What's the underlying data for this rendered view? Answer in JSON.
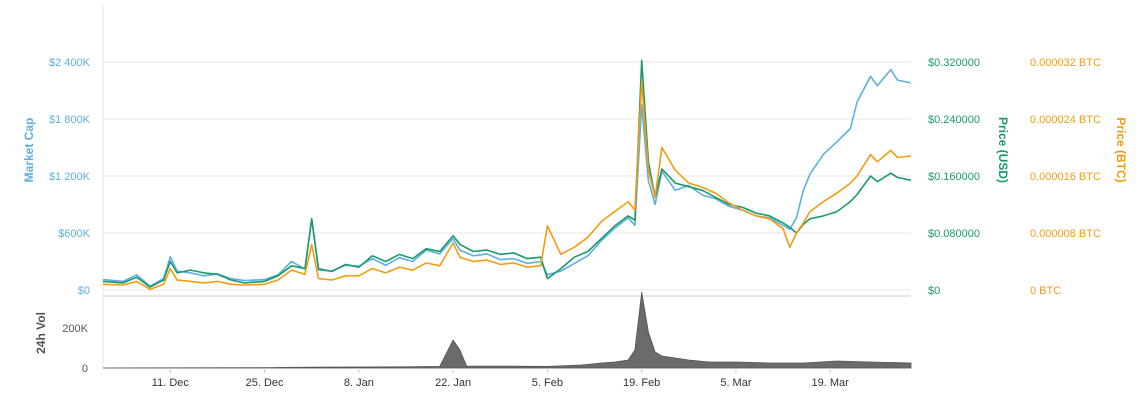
{
  "chart_data": {
    "type": "line",
    "x_tick_labels": [
      "11. Dec",
      "25. Dec",
      "8. Jan",
      "22. Jan",
      "5. Feb",
      "19. Feb",
      "5. Mar",
      "19. Mar"
    ],
    "x_tick_dates": [
      "2017-12-11",
      "2017-12-25",
      "2018-01-08",
      "2018-01-22",
      "2018-02-05",
      "2018-02-19",
      "2018-03-05",
      "2018-03-19"
    ],
    "xlim_dates": [
      "2017-12-01",
      "2018-03-31"
    ],
    "axes": {
      "market_cap": {
        "title": "Market Cap",
        "tick_labels": [
          "$0",
          "$600K",
          "$1 200K",
          "$1 800K",
          "$2 400K"
        ],
        "tick_values": [
          0,
          600000,
          1200000,
          1800000,
          2400000
        ],
        "ylim": [
          0,
          2400000
        ],
        "color": "#5fafde"
      },
      "price_usd": {
        "title": "Price (USD)",
        "tick_labels": [
          "$0",
          "$0.080000",
          "$0.160000",
          "$0.240000",
          "$0.320000"
        ],
        "tick_values": [
          0,
          0.08,
          0.16,
          0.24,
          0.32
        ],
        "ylim": [
          0,
          0.32
        ],
        "color": "#1a9a6c"
      },
      "price_btc": {
        "title": "Price (BTC)",
        "tick_labels": [
          "0 BTC",
          "0.000008 BTC",
          "0.000016 BTC",
          "0.000024 BTC",
          "0.000032 BTC"
        ],
        "tick_values": [
          0,
          8e-06,
          1.6e-05,
          2.4e-05,
          3.2e-05
        ],
        "ylim": [
          0,
          3.2e-05
        ],
        "color": "#f39c12"
      },
      "volume": {
        "title": "24h Vol",
        "tick_labels": [
          "0",
          "200K"
        ],
        "tick_values": [
          0,
          200000
        ],
        "ylim": [
          0,
          350000
        ],
        "color": "#555555"
      }
    },
    "grid": true,
    "series": [
      {
        "key": "market_cap",
        "axis": "market_cap",
        "points": [
          [
            "2017-12-01",
            110000
          ],
          [
            "2017-12-04",
            90000
          ],
          [
            "2017-12-06",
            160000
          ],
          [
            "2017-12-08",
            40000
          ],
          [
            "2017-12-10",
            120000
          ],
          [
            "2017-12-11",
            350000
          ],
          [
            "2017-12-12",
            200000
          ],
          [
            "2017-12-14",
            180000
          ],
          [
            "2017-12-16",
            150000
          ],
          [
            "2017-12-18",
            170000
          ],
          [
            "2017-12-20",
            120000
          ],
          [
            "2017-12-22",
            100000
          ],
          [
            "2017-12-25",
            110000
          ],
          [
            "2017-12-27",
            160000
          ],
          [
            "2017-12-29",
            300000
          ],
          [
            "2017-12-31",
            220000
          ],
          [
            "2018-01-01",
            750000
          ],
          [
            "2018-01-02",
            210000
          ],
          [
            "2018-01-04",
            200000
          ],
          [
            "2018-01-06",
            260000
          ],
          [
            "2018-01-08",
            250000
          ],
          [
            "2018-01-10",
            330000
          ],
          [
            "2018-01-12",
            260000
          ],
          [
            "2018-01-14",
            340000
          ],
          [
            "2018-01-16",
            300000
          ],
          [
            "2018-01-18",
            420000
          ],
          [
            "2018-01-20",
            380000
          ],
          [
            "2018-01-22",
            540000
          ],
          [
            "2018-01-23",
            420000
          ],
          [
            "2018-01-25",
            360000
          ],
          [
            "2018-01-27",
            380000
          ],
          [
            "2018-01-29",
            320000
          ],
          [
            "2018-01-31",
            330000
          ],
          [
            "2018-02-02",
            280000
          ],
          [
            "2018-02-04",
            300000
          ],
          [
            "2018-02-05",
            160000
          ],
          [
            "2018-02-07",
            200000
          ],
          [
            "2018-02-09",
            280000
          ],
          [
            "2018-02-11",
            360000
          ],
          [
            "2018-02-13",
            520000
          ],
          [
            "2018-02-15",
            650000
          ],
          [
            "2018-02-17",
            760000
          ],
          [
            "2018-02-18",
            680000
          ],
          [
            "2018-02-19",
            1950000
          ],
          [
            "2018-02-20",
            1150000
          ],
          [
            "2018-02-21",
            900000
          ],
          [
            "2018-02-22",
            1250000
          ],
          [
            "2018-02-24",
            1050000
          ],
          [
            "2018-02-26",
            1100000
          ],
          [
            "2018-02-28",
            1000000
          ],
          [
            "2018-03-02",
            960000
          ],
          [
            "2018-03-04",
            880000
          ],
          [
            "2018-03-06",
            840000
          ],
          [
            "2018-03-08",
            780000
          ],
          [
            "2018-03-10",
            760000
          ],
          [
            "2018-03-12",
            680000
          ],
          [
            "2018-03-13",
            640000
          ],
          [
            "2018-03-14",
            760000
          ],
          [
            "2018-03-15",
            1050000
          ],
          [
            "2018-03-16",
            1220000
          ],
          [
            "2018-03-18",
            1430000
          ],
          [
            "2018-03-20",
            1560000
          ],
          [
            "2018-03-22",
            1700000
          ],
          [
            "2018-03-23",
            1980000
          ],
          [
            "2018-03-25",
            2250000
          ],
          [
            "2018-03-26",
            2150000
          ],
          [
            "2018-03-28",
            2320000
          ],
          [
            "2018-03-29",
            2210000
          ],
          [
            "2018-03-31",
            2180000
          ]
        ]
      },
      {
        "key": "price_usd",
        "axis": "price_usd",
        "points": [
          [
            "2017-12-01",
            0.012
          ],
          [
            "2017-12-04",
            0.01
          ],
          [
            "2017-12-06",
            0.018
          ],
          [
            "2017-12-08",
            0.004
          ],
          [
            "2017-12-10",
            0.014
          ],
          [
            "2017-12-11",
            0.04
          ],
          [
            "2017-12-12",
            0.024
          ],
          [
            "2017-12-14",
            0.028
          ],
          [
            "2017-12-16",
            0.024
          ],
          [
            "2017-12-18",
            0.022
          ],
          [
            "2017-12-20",
            0.014
          ],
          [
            "2017-12-22",
            0.01
          ],
          [
            "2017-12-25",
            0.012
          ],
          [
            "2017-12-27",
            0.02
          ],
          [
            "2017-12-29",
            0.034
          ],
          [
            "2017-12-31",
            0.03
          ],
          [
            "2018-01-01",
            0.1
          ],
          [
            "2018-01-02",
            0.03
          ],
          [
            "2018-01-04",
            0.026
          ],
          [
            "2018-01-06",
            0.036
          ],
          [
            "2018-01-08",
            0.032
          ],
          [
            "2018-01-10",
            0.048
          ],
          [
            "2018-01-12",
            0.04
          ],
          [
            "2018-01-14",
            0.05
          ],
          [
            "2018-01-16",
            0.044
          ],
          [
            "2018-01-18",
            0.058
          ],
          [
            "2018-01-20",
            0.054
          ],
          [
            "2018-01-22",
            0.076
          ],
          [
            "2018-01-23",
            0.064
          ],
          [
            "2018-01-25",
            0.054
          ],
          [
            "2018-01-27",
            0.056
          ],
          [
            "2018-01-29",
            0.05
          ],
          [
            "2018-01-31",
            0.052
          ],
          [
            "2018-02-02",
            0.044
          ],
          [
            "2018-02-04",
            0.046
          ],
          [
            "2018-02-05",
            0.016
          ],
          [
            "2018-02-07",
            0.03
          ],
          [
            "2018-02-09",
            0.046
          ],
          [
            "2018-02-11",
            0.054
          ],
          [
            "2018-02-13",
            0.072
          ],
          [
            "2018-02-15",
            0.09
          ],
          [
            "2018-02-17",
            0.104
          ],
          [
            "2018-02-18",
            0.098
          ],
          [
            "2018-02-19",
            0.322
          ],
          [
            "2018-02-20",
            0.18
          ],
          [
            "2018-02-21",
            0.13
          ],
          [
            "2018-02-22",
            0.17
          ],
          [
            "2018-02-24",
            0.15
          ],
          [
            "2018-02-26",
            0.145
          ],
          [
            "2018-02-28",
            0.14
          ],
          [
            "2018-03-02",
            0.13
          ],
          [
            "2018-03-04",
            0.12
          ],
          [
            "2018-03-06",
            0.116
          ],
          [
            "2018-03-08",
            0.108
          ],
          [
            "2018-03-10",
            0.104
          ],
          [
            "2018-03-12",
            0.094
          ],
          [
            "2018-03-13",
            0.088
          ],
          [
            "2018-03-14",
            0.08
          ],
          [
            "2018-03-15",
            0.092
          ],
          [
            "2018-03-16",
            0.1
          ],
          [
            "2018-03-18",
            0.104
          ],
          [
            "2018-03-20",
            0.11
          ],
          [
            "2018-03-22",
            0.124
          ],
          [
            "2018-03-23",
            0.134
          ],
          [
            "2018-03-25",
            0.16
          ],
          [
            "2018-03-26",
            0.152
          ],
          [
            "2018-03-28",
            0.164
          ],
          [
            "2018-03-29",
            0.158
          ],
          [
            "2018-03-31",
            0.154
          ]
        ]
      },
      {
        "key": "price_btc",
        "axis": "price_btc",
        "points": [
          [
            "2017-12-01",
            8e-07
          ],
          [
            "2017-12-04",
            7e-07
          ],
          [
            "2017-12-06",
            1.2e-06
          ],
          [
            "2017-12-08",
            1e-07
          ],
          [
            "2017-12-10",
            8e-07
          ],
          [
            "2017-12-11",
            3e-06
          ],
          [
            "2017-12-12",
            1.4e-06
          ],
          [
            "2017-12-14",
            1.2e-06
          ],
          [
            "2017-12-16",
            1e-06
          ],
          [
            "2017-12-18",
            1.2e-06
          ],
          [
            "2017-12-20",
            8e-07
          ],
          [
            "2017-12-22",
            7e-07
          ],
          [
            "2017-12-25",
            8e-07
          ],
          [
            "2017-12-27",
            1.4e-06
          ],
          [
            "2017-12-29",
            2.8e-06
          ],
          [
            "2017-12-31",
            2.2e-06
          ],
          [
            "2018-01-01",
            6.4e-06
          ],
          [
            "2018-01-02",
            1.6e-06
          ],
          [
            "2018-01-04",
            1.4e-06
          ],
          [
            "2018-01-06",
            2e-06
          ],
          [
            "2018-01-08",
            2e-06
          ],
          [
            "2018-01-10",
            3e-06
          ],
          [
            "2018-01-12",
            2.4e-06
          ],
          [
            "2018-01-14",
            3.2e-06
          ],
          [
            "2018-01-16",
            2.8e-06
          ],
          [
            "2018-01-18",
            3.8e-06
          ],
          [
            "2018-01-20",
            3.4e-06
          ],
          [
            "2018-01-22",
            6.6e-06
          ],
          [
            "2018-01-23",
            4.6e-06
          ],
          [
            "2018-01-25",
            4e-06
          ],
          [
            "2018-01-27",
            4.2e-06
          ],
          [
            "2018-01-29",
            3.6e-06
          ],
          [
            "2018-01-31",
            3.8e-06
          ],
          [
            "2018-02-02",
            3.2e-06
          ],
          [
            "2018-02-04",
            3.4e-06
          ],
          [
            "2018-02-05",
            9e-06
          ],
          [
            "2018-02-07",
            5e-06
          ],
          [
            "2018-02-09",
            6e-06
          ],
          [
            "2018-02-11",
            7.4e-06
          ],
          [
            "2018-02-13",
            9.6e-06
          ],
          [
            "2018-02-15",
            1.1e-05
          ],
          [
            "2018-02-17",
            1.24e-05
          ],
          [
            "2018-02-18",
            1.12e-05
          ],
          [
            "2018-02-19",
            2.92e-05
          ],
          [
            "2018-02-20",
            1.68e-05
          ],
          [
            "2018-02-21",
            1.3e-05
          ],
          [
            "2018-02-22",
            2e-05
          ],
          [
            "2018-02-24",
            1.68e-05
          ],
          [
            "2018-02-26",
            1.5e-05
          ],
          [
            "2018-02-28",
            1.44e-05
          ],
          [
            "2018-03-02",
            1.36e-05
          ],
          [
            "2018-03-04",
            1.22e-05
          ],
          [
            "2018-03-06",
            1.12e-05
          ],
          [
            "2018-03-08",
            1.04e-05
          ],
          [
            "2018-03-10",
            1e-05
          ],
          [
            "2018-03-12",
            8.6e-06
          ],
          [
            "2018-03-13",
            6e-06
          ],
          [
            "2018-03-14",
            8e-06
          ],
          [
            "2018-03-15",
            9.4e-06
          ],
          [
            "2018-03-16",
            1.1e-05
          ],
          [
            "2018-03-18",
            1.24e-05
          ],
          [
            "2018-03-20",
            1.36e-05
          ],
          [
            "2018-03-22",
            1.5e-05
          ],
          [
            "2018-03-23",
            1.6e-05
          ],
          [
            "2018-03-25",
            1.9e-05
          ],
          [
            "2018-03-26",
            1.8e-05
          ],
          [
            "2018-03-28",
            1.96e-05
          ],
          [
            "2018-03-29",
            1.86e-05
          ],
          [
            "2018-03-31",
            1.88e-05
          ]
        ]
      },
      {
        "key": "volume",
        "axis": "volume",
        "points": [
          [
            "2017-12-01",
            0
          ],
          [
            "2017-12-25",
            2000
          ],
          [
            "2018-01-01",
            4000
          ],
          [
            "2018-01-15",
            6000
          ],
          [
            "2018-01-20",
            8000
          ],
          [
            "2018-01-22",
            140000
          ],
          [
            "2018-01-23",
            90000
          ],
          [
            "2018-01-24",
            10000
          ],
          [
            "2018-02-05",
            8000
          ],
          [
            "2018-02-10",
            15000
          ],
          [
            "2018-02-13",
            25000
          ],
          [
            "2018-02-15",
            30000
          ],
          [
            "2018-02-17",
            40000
          ],
          [
            "2018-02-18",
            90000
          ],
          [
            "2018-02-19",
            380000
          ],
          [
            "2018-02-20",
            180000
          ],
          [
            "2018-02-21",
            80000
          ],
          [
            "2018-02-22",
            60000
          ],
          [
            "2018-02-24",
            50000
          ],
          [
            "2018-02-26",
            40000
          ],
          [
            "2018-03-01",
            30000
          ],
          [
            "2018-03-05",
            30000
          ],
          [
            "2018-03-10",
            25000
          ],
          [
            "2018-03-15",
            25000
          ],
          [
            "2018-03-20",
            35000
          ],
          [
            "2018-03-25",
            30000
          ],
          [
            "2018-03-31",
            25000
          ]
        ]
      }
    ]
  }
}
